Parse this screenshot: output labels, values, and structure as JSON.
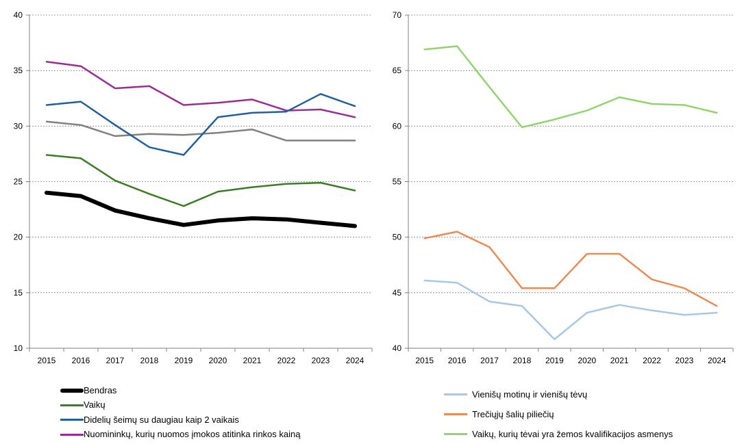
{
  "chart_data": [
    {
      "type": "line",
      "categories": [
        "2015",
        "2016",
        "2017",
        "2018",
        "2019",
        "2020",
        "2021",
        "2022",
        "2023",
        "2024"
      ],
      "ylim": [
        10,
        40
      ],
      "yticks": [
        10,
        15,
        20,
        25,
        30,
        35,
        40
      ],
      "grid": "horizontal dashed",
      "legend_position": "bottom",
      "series": [
        {
          "name": "Bendras",
          "color": "#000000",
          "width": "thick",
          "values": [
            24.0,
            23.7,
            22.4,
            21.7,
            21.1,
            21.5,
            21.7,
            21.6,
            21.3,
            21.0
          ]
        },
        {
          "name": "Vaikų",
          "color": "#3a7d22",
          "values": [
            27.4,
            27.1,
            25.1,
            23.9,
            22.8,
            24.1,
            24.5,
            24.8,
            24.9,
            24.2
          ]
        },
        {
          "name": "Didelių šeimų su daugiau kaip 2 vaikais",
          "color": "#21609c",
          "values": [
            31.9,
            32.2,
            30.1,
            28.1,
            27.4,
            30.8,
            31.2,
            31.3,
            32.9,
            31.8
          ]
        },
        {
          "name": "Nuomininkų, kurių nuomos įmokos atitinka rinkos kainą",
          "color": "#9c2b96",
          "values": [
            35.8,
            35.4,
            33.4,
            33.6,
            31.9,
            32.1,
            32.4,
            31.4,
            31.5,
            30.8
          ]
        },
        {
          "name": "",
          "color": "#808080",
          "values": [
            30.4,
            30.1,
            29.1,
            29.3,
            29.2,
            29.4,
            29.7,
            28.7,
            28.7,
            28.7
          ]
        }
      ]
    },
    {
      "type": "line",
      "categories": [
        "2015",
        "2016",
        "2017",
        "2018",
        "2019",
        "2020",
        "2021",
        "2022",
        "2023",
        "2024"
      ],
      "ylim": [
        40,
        70
      ],
      "yticks": [
        40,
        45,
        50,
        55,
        60,
        65,
        70
      ],
      "grid": "horizontal dashed",
      "legend_position": "bottom",
      "series": [
        {
          "name": "Vienišų motinų ir vienišų tėvų",
          "color": "#a6c8e6",
          "values": [
            46.1,
            45.9,
            44.2,
            43.8,
            40.8,
            43.2,
            43.9,
            43.4,
            43.0,
            43.2
          ]
        },
        {
          "name": "Trečiųjų šalių piliečių",
          "color": "#eb8a55",
          "values": [
            49.9,
            50.5,
            49.1,
            45.4,
            45.4,
            48.5,
            48.5,
            46.2,
            45.4,
            43.8
          ]
        },
        {
          "name": "Vaikų, kurių tėvai yra žemos kvalifikacijos asmenys",
          "color": "#92d36e",
          "values": [
            66.9,
            67.2,
            63.5,
            59.9,
            60.6,
            61.4,
            62.6,
            62.0,
            61.9,
            61.2
          ]
        }
      ]
    }
  ]
}
